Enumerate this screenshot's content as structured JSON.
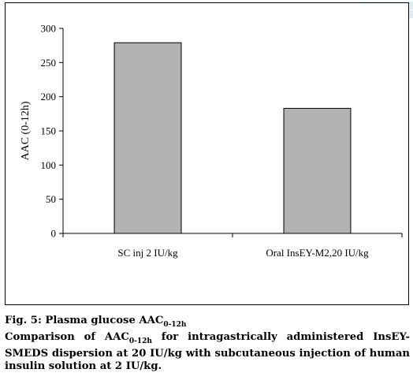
{
  "chart_data": {
    "type": "bar",
    "categories": [
      "SC inj 2 IU/kg",
      "Oral InsEY-M2,20 IU/kg"
    ],
    "values": [
      279,
      183
    ],
    "ylabel": "AAC (0-12h)",
    "xlabel": "",
    "title": "",
    "ylim": [
      0,
      300
    ],
    "yticks": [
      0,
      50,
      100,
      150,
      200,
      250,
      300
    ],
    "bar_color": "#b3b3b3",
    "grid": false,
    "legend": "none"
  },
  "caption": {
    "fig_label": "Fig. 5: Plasma glucose AAC",
    "fig_label_sub": "0-12h",
    "line2_a": "Comparison of AAC",
    "line2_sub": "0-12h",
    "line2_b": " for intragastrically administered InsEY-",
    "line3": "SMEDS dispersion at 20 IU/kg with subcutaneous injection of human",
    "line4": "insulin solution at 2 IU/kg."
  }
}
